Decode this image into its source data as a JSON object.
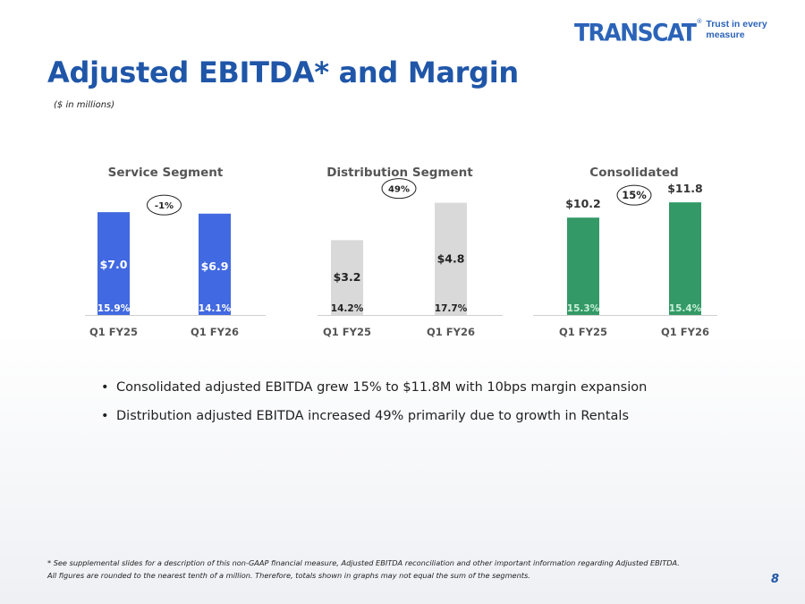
{
  "logo": {
    "word": "TRANSCAT",
    "reg": "®",
    "tagline": "Trust in every measure"
  },
  "title": "Adjusted EBITDA* and Margin",
  "subtitle": "($ in millions)",
  "chart_data": [
    {
      "type": "bar",
      "title": "Service Segment",
      "categories": [
        "Q1 FY25",
        "Q1 FY26"
      ],
      "values": [
        7.0,
        6.9
      ],
      "value_labels": [
        "$7.0",
        "$6.9"
      ],
      "margin_labels": [
        "15.9%",
        "14.1%"
      ],
      "change_label": "-1%",
      "ylim": [
        0,
        7.8
      ],
      "label_position": "inside",
      "bar_color": "#4169e1",
      "text_color": "#ffffff",
      "margin_color": "#ffffff"
    },
    {
      "type": "bar",
      "title": "Distribution Segment",
      "categories": [
        "Q1 FY25",
        "Q1 FY26"
      ],
      "values": [
        3.2,
        4.8
      ],
      "value_labels": [
        "$3.2",
        "$4.8"
      ],
      "margin_labels": [
        "14.2%",
        "17.7%"
      ],
      "change_label": "49%",
      "ylim": [
        0,
        4.9
      ],
      "label_position": "inside",
      "bar_color": "#d9d9d9",
      "text_color": "#222222",
      "margin_color": "#222222"
    },
    {
      "type": "bar",
      "title": "Consolidated",
      "categories": [
        "Q1 FY25",
        "Q1 FY26"
      ],
      "values": [
        10.2,
        11.8
      ],
      "value_labels": [
        "$10.2",
        "$11.8"
      ],
      "margin_labels": [
        "15.3%",
        "15.4%"
      ],
      "change_label": "15%",
      "ylim": [
        0,
        12.0
      ],
      "label_position": "above",
      "bar_color": "#339966",
      "text_color": "#333333",
      "margin_color": "#c9f0d8"
    }
  ],
  "bullets": [
    "Consolidated adjusted EBITDA grew 15% to $11.8M with 10bps margin expansion",
    "Distribution adjusted EBITDA increased 49% primarily due to growth in Rentals"
  ],
  "footnote": [
    "* See supplemental slides for a description of this non-GAAP financial measure, Adjusted EBITDA reconciliation and other important information regarding Adjusted EBITDA.",
    "All figures are rounded to the nearest tenth of a million. Therefore, totals shown in graphs may not equal the sum of the segments."
  ],
  "page_number": "8"
}
